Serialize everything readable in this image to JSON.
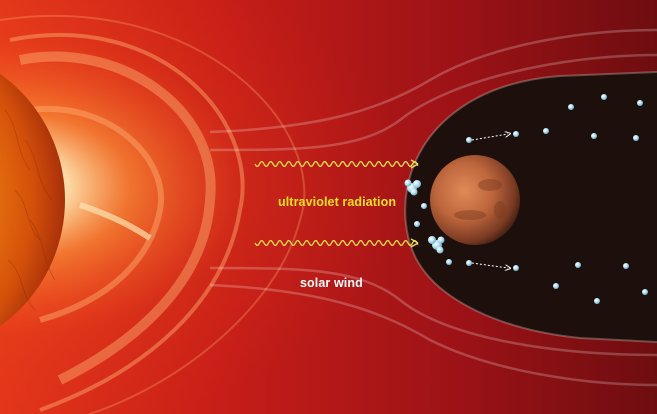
{
  "labels": {
    "ultraviolet": "ultraviolet radiation",
    "solar_wind": "solar wind"
  },
  "colors": {
    "ultraviolet_label": "#f5e21c",
    "solar_wind_label": "#ffffff",
    "wave": "#f2e14a",
    "background_red": "#b8141a",
    "magnetosphere": "#1c0f0c",
    "particle": "#9fd3ea",
    "mars": "#b8653a"
  },
  "icons": {
    "sun": "sun-icon",
    "planet": "mars-icon",
    "particle": "ion-particle-icon"
  }
}
